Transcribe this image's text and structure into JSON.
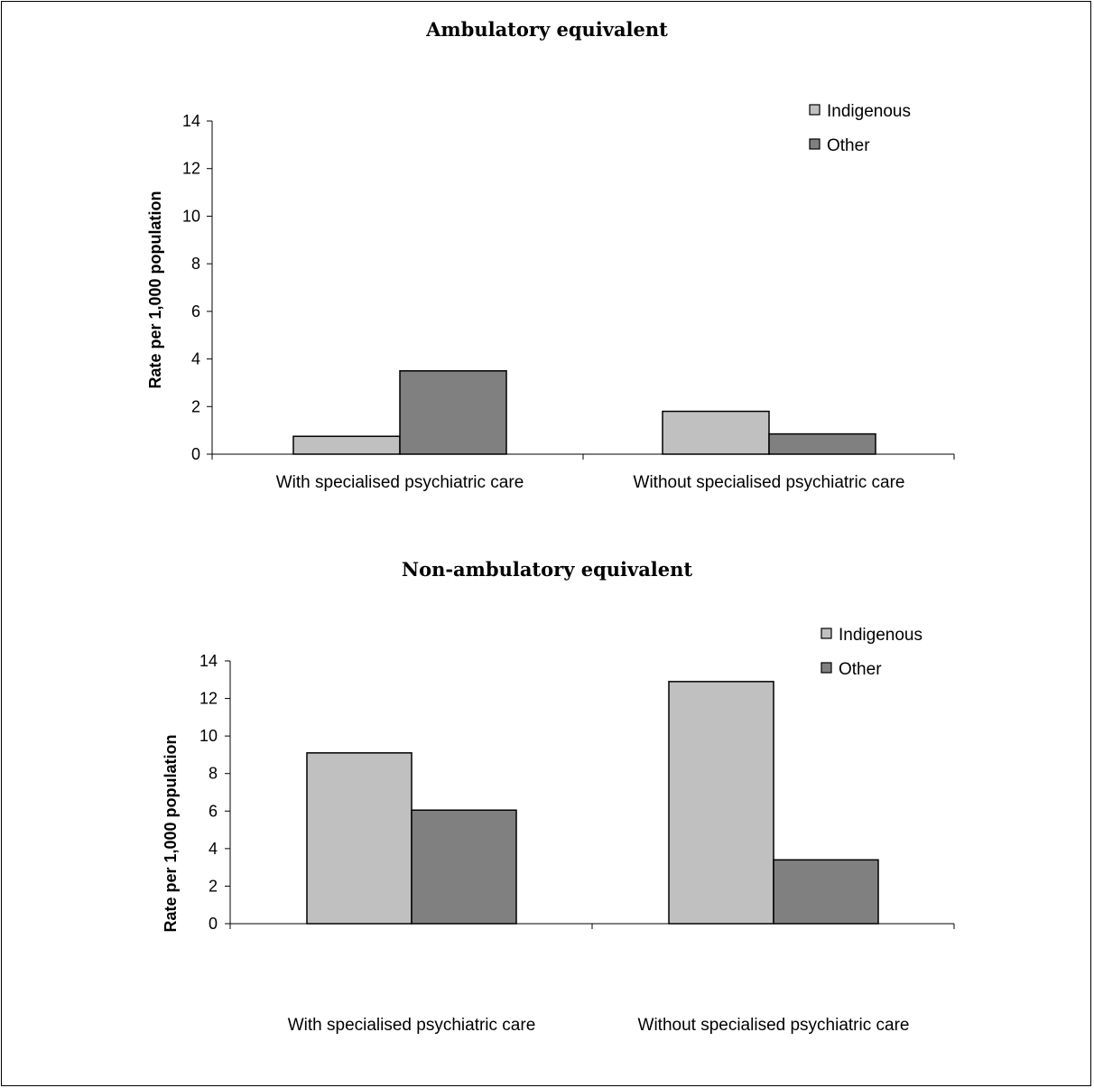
{
  "chart_data": [
    {
      "type": "bar",
      "title": "Ambulatory equivalent",
      "ylabel": "Rate per 1,000 population",
      "xlabel": "",
      "ylim": [
        0,
        14
      ],
      "yticks": [
        0,
        2,
        4,
        6,
        8,
        10,
        12,
        14
      ],
      "categories": [
        "With specialised psychiatric care",
        "Without specialised psychiatric care"
      ],
      "series": [
        {
          "name": "Indigenous",
          "color": "#c0c0c0",
          "values": [
            0.75,
            1.8
          ]
        },
        {
          "name": "Other",
          "color": "#808080",
          "values": [
            3.5,
            0.85
          ]
        }
      ],
      "legend": "top-right",
      "grid": false
    },
    {
      "type": "bar",
      "title": "Non-ambulatory equivalent",
      "ylabel": "Rate per 1,000 population",
      "xlabel": "",
      "ylim": [
        0,
        14
      ],
      "yticks": [
        0,
        2,
        4,
        6,
        8,
        10,
        12,
        14
      ],
      "categories": [
        "With specialised psychiatric care",
        "Without specialised psychiatric care"
      ],
      "series": [
        {
          "name": "Indigenous",
          "color": "#c0c0c0",
          "values": [
            9.1,
            12.9
          ]
        },
        {
          "name": "Other",
          "color": "#808080",
          "values": [
            6.05,
            3.4
          ]
        }
      ],
      "legend": "top-right",
      "grid": false
    }
  ]
}
